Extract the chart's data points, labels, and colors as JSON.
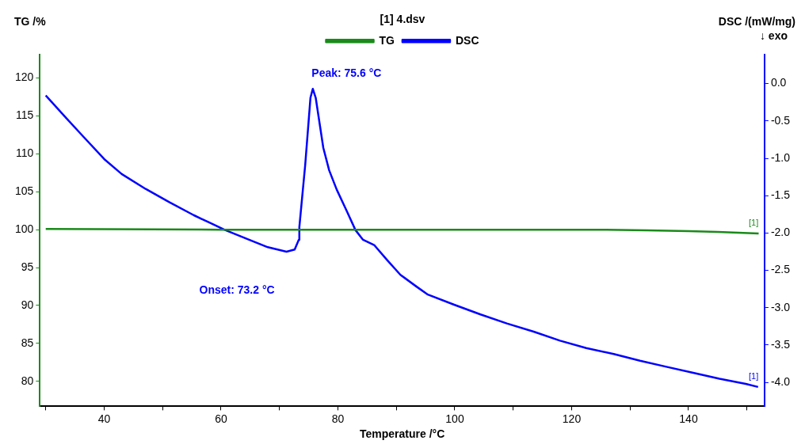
{
  "chart_data": {
    "type": "line",
    "xlabel": "Temperature /°C",
    "ylabel": "TG /%",
    "y2label": "DSC /(mW/mg)",
    "legend_title": "[1] 4.dsv",
    "legend": "top",
    "grid": false,
    "marker": "none",
    "line_style": "solid",
    "xlim": [
      29,
      153
    ],
    "xticks": [
      {
        "value": 30,
        "label": null
      },
      40,
      {
        "value": 50,
        "label": null
      },
      60,
      {
        "value": 70,
        "label": null
      },
      80,
      {
        "value": 90,
        "label": null
      },
      100,
      {
        "value": 110,
        "label": null
      },
      120,
      {
        "value": 130,
        "label": null
      },
      140,
      {
        "value": 150,
        "label": null
      }
    ],
    "ylim": [
      76.7,
      123.1
    ],
    "yticks": [
      80,
      85,
      90,
      95,
      100,
      105,
      110,
      115,
      120
    ],
    "y2lim": [
      -4.32,
      0.39
    ],
    "y2ticks": [
      {
        "value": -4,
        "label": "-4.0"
      },
      -3.5,
      {
        "value": -3,
        "label": "-3.0"
      },
      -2.5,
      {
        "value": -2,
        "label": "-2.0"
      },
      -1.5,
      {
        "value": -1,
        "label": "-1.0"
      },
      -0.5,
      {
        "value": 0,
        "label": "0.0"
      }
    ],
    "series": [
      {
        "name": "TG",
        "color": "#1a8a1a",
        "x": [
          30,
          60,
          90,
          126,
          133,
          140,
          145,
          152
        ],
        "values": [
          100.1,
          100.0,
          100.0,
          100.0,
          99.9,
          99.8,
          99.7,
          99.5
        ]
      },
      {
        "name": "DSC",
        "color": "#0000ff",
        "axis": "y2",
        "x": [
          30.0,
          33.5,
          36.2,
          40,
          43,
          47.1,
          51.2,
          55.3,
          58,
          60.7,
          64.8,
          68,
          71.2,
          72.6,
          73.3,
          73.4,
          74.4,
          75.3,
          75.7,
          76.2,
          77.5,
          78.5,
          79.8,
          81.6,
          83,
          84.3,
          86.2,
          88.4,
          90.7,
          93.5,
          95.3,
          99.9,
          104.4,
          108.9,
          113.5,
          118,
          122.5,
          127.2,
          131.7,
          136.2,
          140.8,
          145.3,
          149.8,
          151.9
        ],
        "values": [
          -0.16,
          -0.46,
          -0.69,
          -1.01,
          -1.21,
          -1.41,
          -1.59,
          -1.76,
          -1.86,
          -1.96,
          -2.09,
          -2.19,
          -2.25,
          -2.22,
          -2.09,
          -1.92,
          -1.09,
          -0.19,
          -0.07,
          -0.19,
          -0.86,
          -1.16,
          -1.42,
          -1.72,
          -1.96,
          -2.09,
          -2.16,
          -2.36,
          -2.56,
          -2.72,
          -2.82,
          -2.96,
          -3.09,
          -3.21,
          -3.32,
          -3.44,
          -3.54,
          -3.62,
          -3.71,
          -3.79,
          -3.87,
          -3.95,
          -4.02,
          -4.06
        ]
      }
    ],
    "annotations": [
      "Peak: 75.6 °C",
      "Onset: 73.2 °C",
      "↓ exo",
      "[1]",
      "[1]"
    ]
  }
}
